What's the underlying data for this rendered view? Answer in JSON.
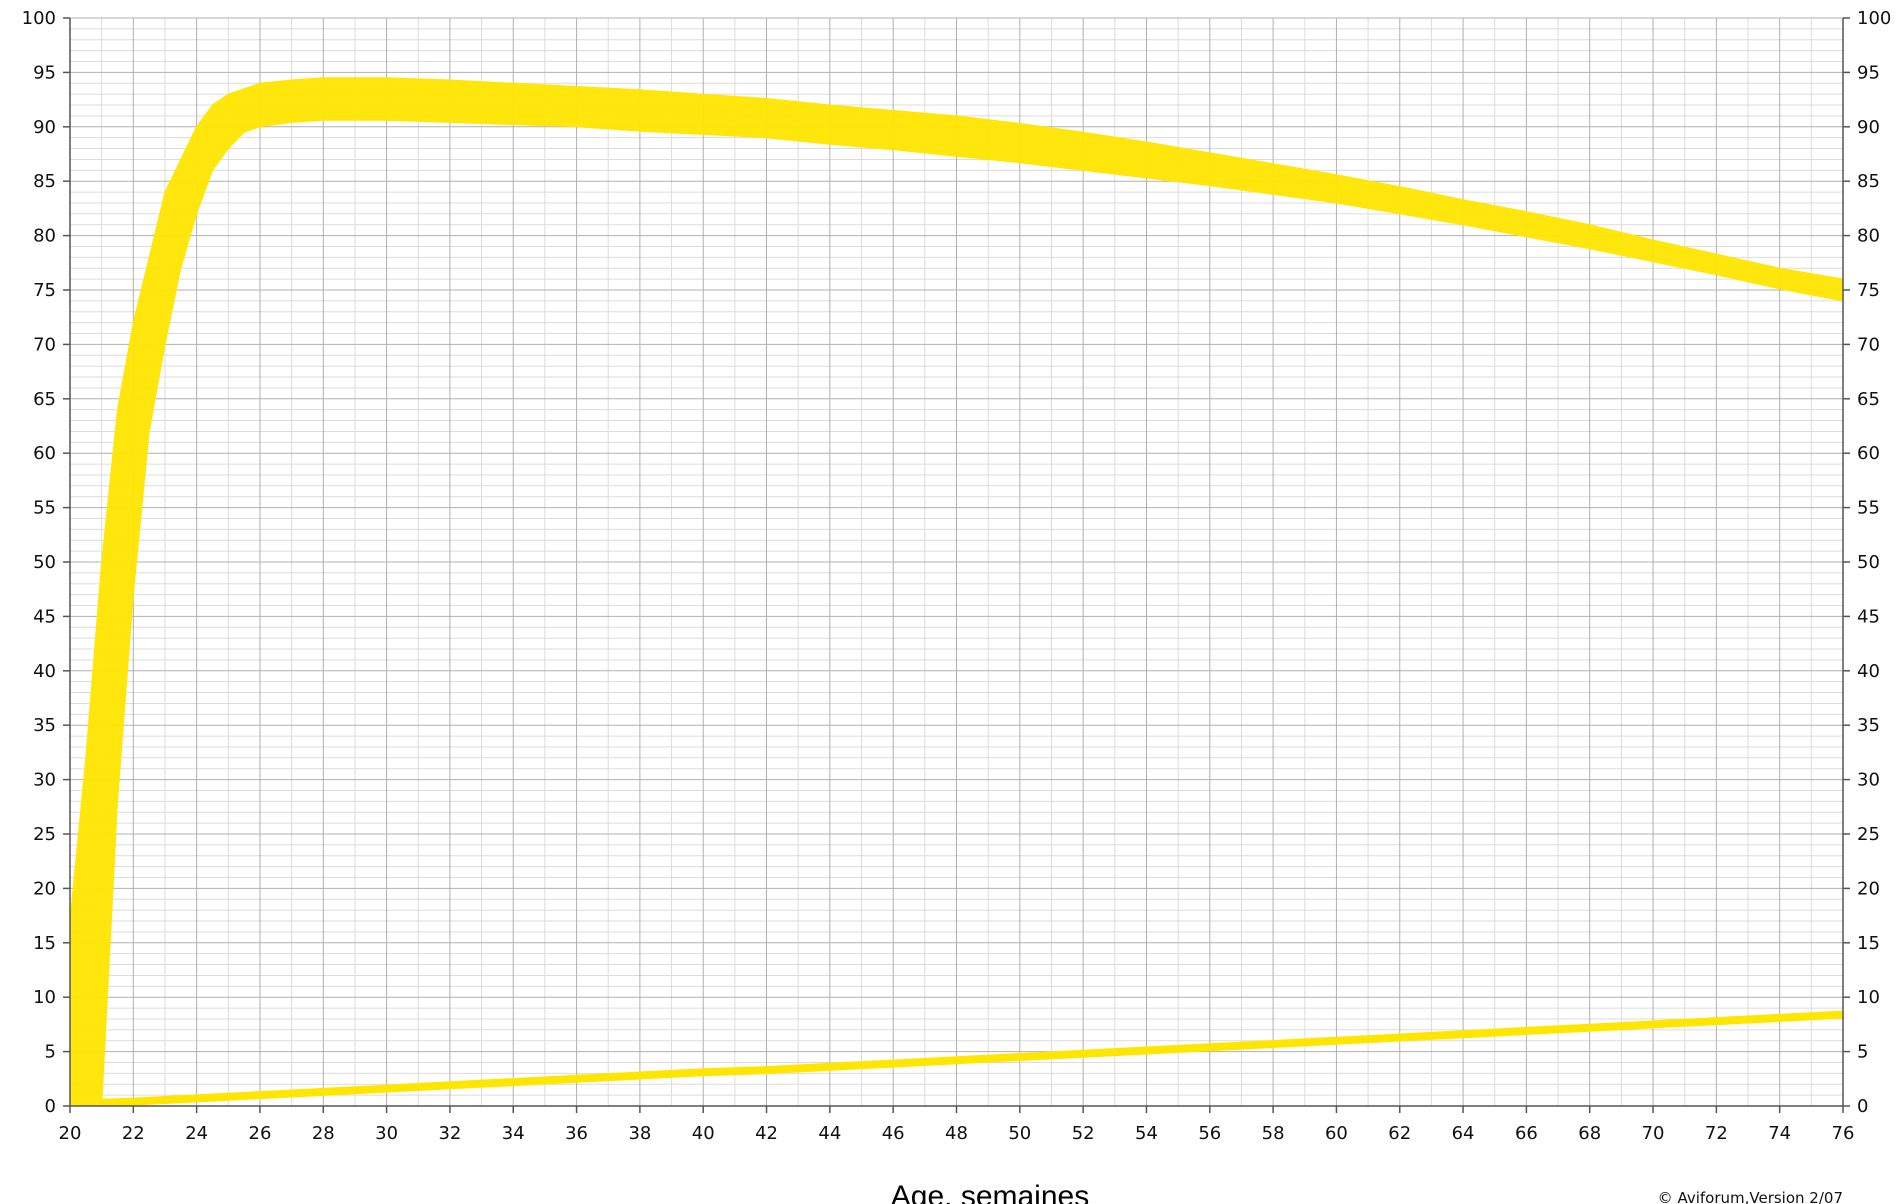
{
  "chart_data": {
    "type": "area",
    "title": "",
    "xlabel": "Age, semaines",
    "ylabel": "",
    "credit": "© Aviforum,Version 2/07",
    "xlim": [
      20,
      76
    ],
    "ylim": [
      0,
      100
    ],
    "x_ticks": [
      20,
      22,
      24,
      26,
      28,
      30,
      32,
      34,
      36,
      38,
      40,
      42,
      44,
      46,
      48,
      50,
      52,
      54,
      56,
      58,
      60,
      62,
      64,
      66,
      68,
      70,
      72,
      74,
      76
    ],
    "y_ticks": [
      0,
      5,
      10,
      15,
      20,
      25,
      30,
      35,
      40,
      45,
      50,
      55,
      60,
      65,
      70,
      75,
      80,
      85,
      90,
      95,
      100
    ],
    "y_axis_right": true,
    "grid": true,
    "colors": {
      "band": "#ffe600",
      "grid_major": "#b0b0b0",
      "grid_minor": "#dcdcdc",
      "axis": "#555555"
    },
    "series": [
      {
        "type": "band",
        "x": [
          20,
          20.5,
          21,
          21.5,
          22,
          22.5,
          23,
          23.5,
          24,
          24.5,
          25,
          25.5,
          26,
          27,
          28,
          30,
          32,
          34,
          36,
          38,
          40,
          42,
          44,
          46,
          48,
          50,
          52,
          54,
          56,
          58,
          60,
          62,
          64,
          66,
          68,
          70,
          72,
          74,
          76
        ],
        "upper": [
          17,
          32,
          50,
          64,
          72,
          78,
          84,
          87,
          90,
          92,
          93,
          93.5,
          94,
          94.3,
          94.5,
          94.5,
          94.3,
          94,
          93.7,
          93.4,
          93,
          92.6,
          92,
          91.5,
          91,
          90.3,
          89.5,
          88.6,
          87.6,
          86.6,
          85.6,
          84.5,
          83.3,
          82.2,
          81,
          79.6,
          78.3,
          77,
          76
        ],
        "lower": [
          0,
          0,
          0,
          28,
          47,
          62,
          70,
          77,
          82,
          86,
          88,
          89.5,
          90,
          90.4,
          90.6,
          90.6,
          90.4,
          90.2,
          90,
          89.6,
          89.3,
          89,
          88.4,
          87.9,
          87.3,
          86.7,
          86,
          85.3,
          84.6,
          83.8,
          83,
          82,
          81,
          79.9,
          78.8,
          77.6,
          76.4,
          75.1,
          74
        ]
      },
      {
        "type": "line",
        "x": [
          21,
          22,
          24,
          26,
          28,
          30,
          32,
          34,
          36,
          38,
          40,
          42,
          44,
          46,
          48,
          50,
          52,
          54,
          56,
          58,
          60,
          62,
          64,
          66,
          68,
          70,
          72,
          74,
          76
        ],
        "values": [
          0.3,
          0.4,
          0.7,
          1.0,
          1.3,
          1.6,
          1.9,
          2.2,
          2.5,
          2.8,
          3.1,
          3.3,
          3.6,
          3.9,
          4.2,
          4.5,
          4.8,
          5.1,
          5.4,
          5.7,
          6.0,
          6.3,
          6.6,
          6.9,
          7.2,
          7.5,
          7.8,
          8.1,
          8.4
        ]
      }
    ]
  }
}
